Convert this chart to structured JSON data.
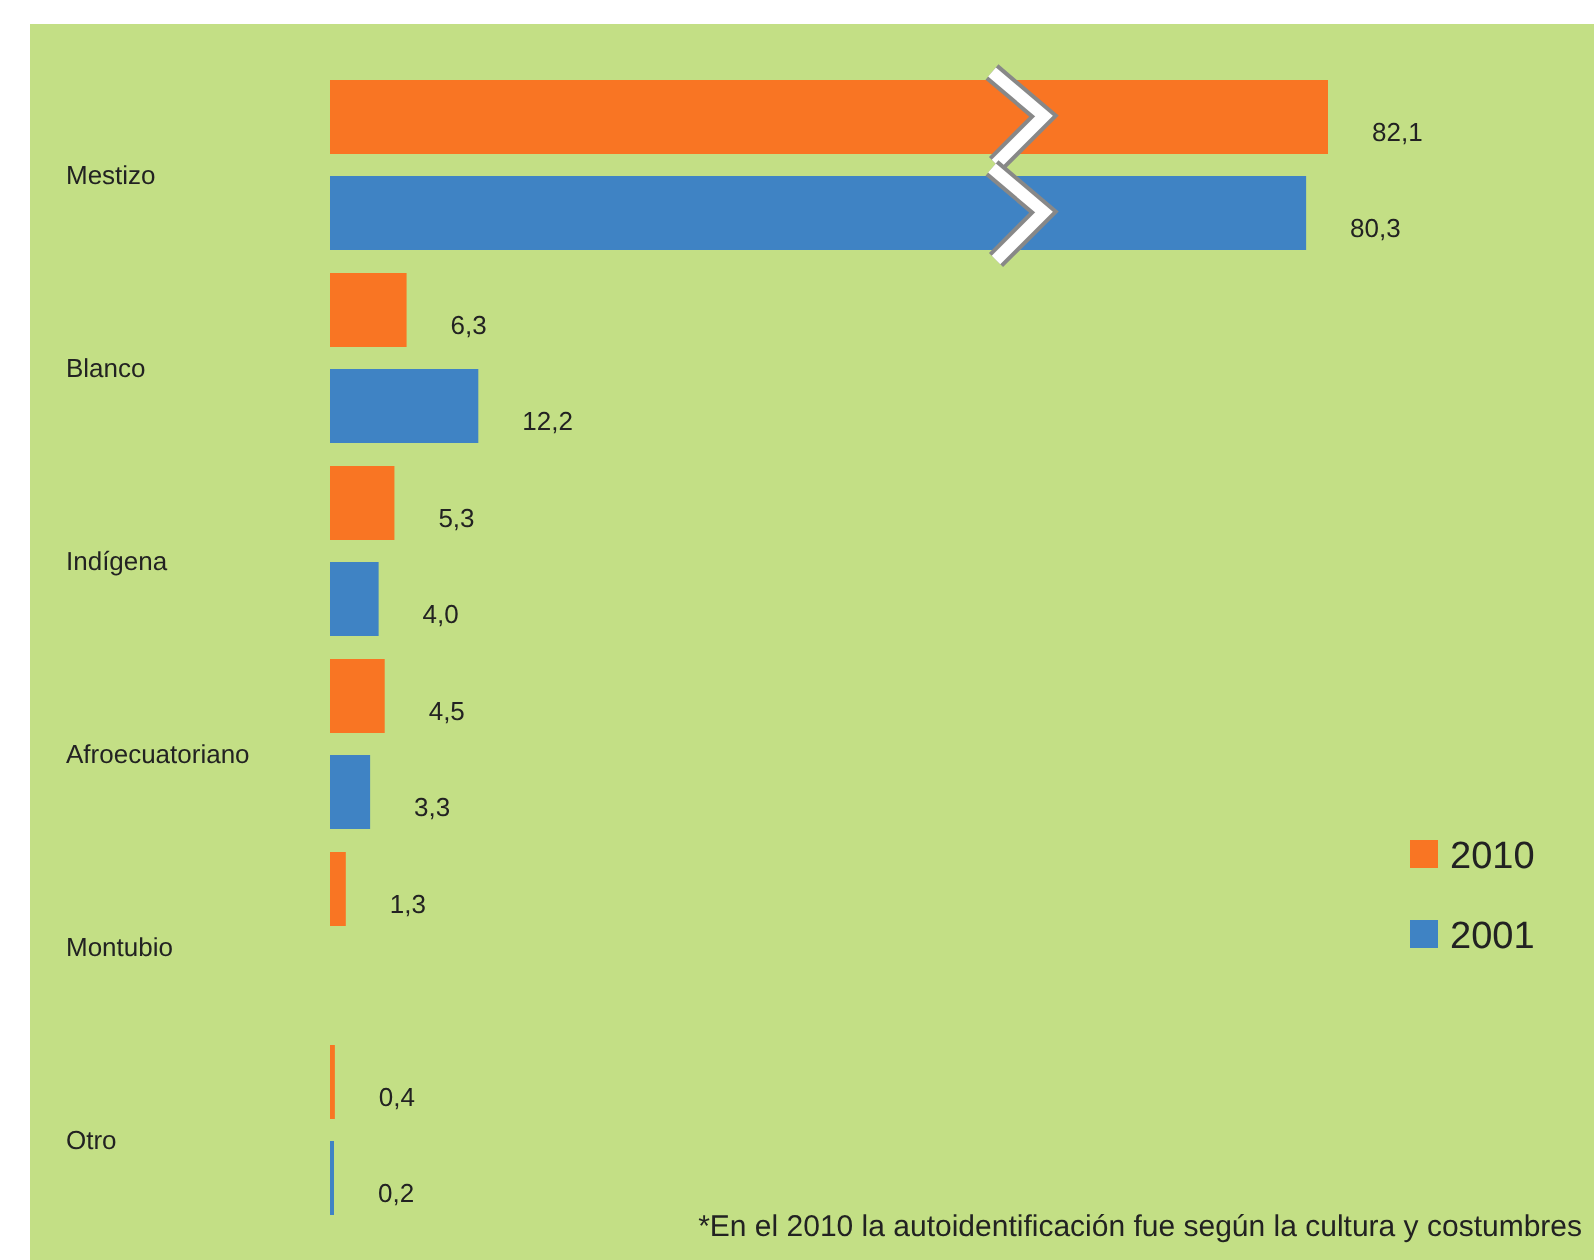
{
  "chart_data": {
    "type": "bar",
    "orientation": "horizontal",
    "categories": [
      "Mestizo",
      "Blanco",
      "Indígena",
      "Afroecuatoriano",
      "Montubio",
      "Otro"
    ],
    "series": [
      {
        "name": "2010",
        "color": "#f97523",
        "values": [
          82.1,
          6.3,
          5.3,
          4.5,
          1.3,
          0.4
        ],
        "value_labels": [
          "82,1",
          "6,3",
          "5,3",
          "4,5",
          "1,3",
          "0,4"
        ]
      },
      {
        "name": "2001",
        "color": "#3f83c4",
        "values": [
          80.3,
          12.2,
          4.0,
          3.3,
          null,
          0.2
        ],
        "value_labels": [
          "80,3",
          "12,2",
          "4,0",
          "3,3",
          null,
          "0,2"
        ]
      }
    ],
    "legend": "bottom right",
    "annotations": [
      "*En el 2010 la autoidentificación fue según la cultura y costumbres"
    ]
  }
}
